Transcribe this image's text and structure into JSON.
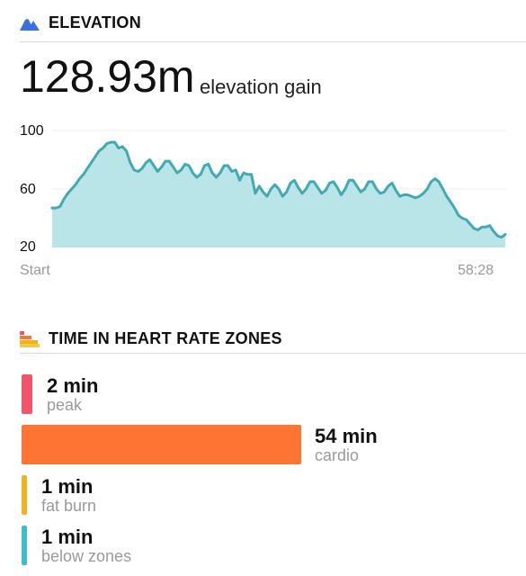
{
  "elevation": {
    "header_title": "ELEVATION",
    "header_icon": "mountain-icon",
    "accent_color": "#3b6fe0",
    "value": "128.93m",
    "value_label": "elevation gain"
  },
  "chart_data": {
    "type": "area",
    "title": "",
    "xlabel": "",
    "ylabel": "",
    "ylim": [
      20,
      100
    ],
    "yticks": [
      "100",
      "60",
      "20"
    ],
    "x_start_label": "Start",
    "x_end_label": "58:28",
    "fill_color": "#b9e5e8",
    "line_color": "#43a9b3",
    "grid": true,
    "series": [
      {
        "values": [
          47,
          47,
          48,
          53,
          57,
          60,
          63,
          67,
          70,
          74,
          78,
          82,
          86,
          88,
          91,
          92,
          92,
          88,
          89,
          86,
          78,
          73,
          72,
          74,
          78,
          80,
          76,
          72,
          75,
          79,
          79,
          75,
          71,
          73,
          77,
          76,
          71,
          68,
          70,
          76,
          77,
          71,
          68,
          71,
          76,
          76,
          72,
          73,
          66,
          71,
          70,
          70,
          57,
          62,
          58,
          55,
          60,
          63,
          60,
          55,
          58,
          64,
          66,
          61,
          57,
          60,
          65,
          65,
          61,
          57,
          59,
          64,
          65,
          61,
          56,
          60,
          66,
          66,
          62,
          58,
          60,
          65,
          65,
          60,
          57,
          58,
          62,
          64,
          59,
          55,
          56,
          56,
          55,
          54,
          55,
          57,
          60,
          65,
          67,
          65,
          60,
          55,
          51,
          47,
          42,
          40,
          39,
          36,
          33,
          32,
          34,
          34,
          35,
          31,
          28,
          27,
          29
        ]
      }
    ]
  },
  "zones": {
    "header_title": "TIME IN HEART RATE ZONES",
    "header_icon": "heart-zones-icon",
    "items": [
      {
        "value": "2 min",
        "name": "peak",
        "color": "#f2546a",
        "minutes": 2
      },
      {
        "value": "54 min",
        "name": "cardio",
        "color": "#fd7433",
        "minutes": 54
      },
      {
        "value": "1 min",
        "name": "fat burn",
        "color": "#f1b21e",
        "minutes": 1
      },
      {
        "value": "1 min",
        "name": "below zones",
        "color": "#3cbfc6",
        "minutes": 1
      }
    ]
  }
}
